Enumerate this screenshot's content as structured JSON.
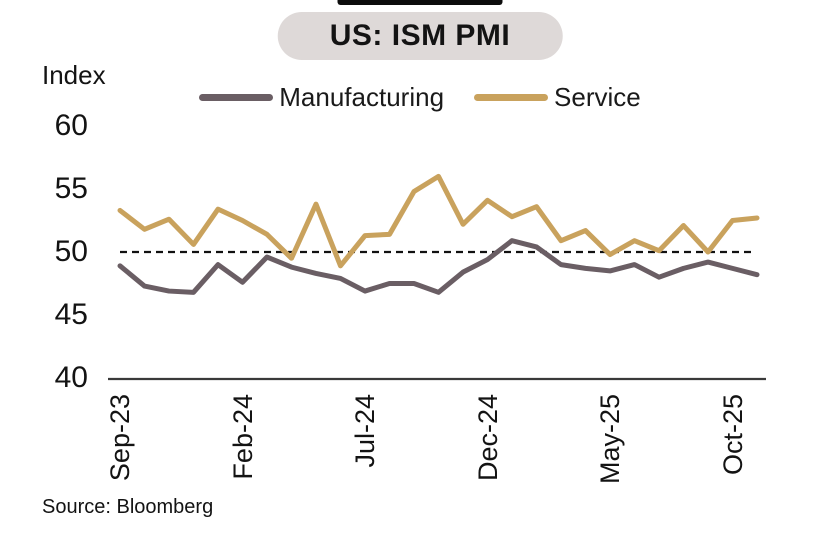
{
  "colors": {
    "accent_bar": "#0c0c0c",
    "title_pill_bg": "#ded9d8",
    "axis": "#3a3a3a",
    "reference_line": "#111111",
    "manufacturing": "#6a5e64",
    "service": "#c9a25d"
  },
  "chart_data": {
    "type": "line",
    "title": "US: ISM PMI",
    "ylabel": "Index",
    "source": "Source: Bloomberg",
    "ylim": [
      40,
      60
    ],
    "y_ticks": [
      60,
      55,
      50,
      45,
      40
    ],
    "reference_line": 50,
    "grid": false,
    "legend_position": "top",
    "x": [
      "Sep-23",
      "Oct-23",
      "Nov-23",
      "Dec-23",
      "Jan-24",
      "Feb-24",
      "Mar-24",
      "Apr-24",
      "May-24",
      "Jun-24",
      "Jul-24",
      "Aug-24",
      "Sep-24",
      "Oct-24",
      "Nov-24",
      "Dec-24",
      "Jan-25",
      "Feb-25",
      "Mar-25",
      "Apr-25",
      "May-25",
      "Jun-25",
      "Jul-25",
      "Aug-25",
      "Sep-25",
      "Oct-25",
      "Nov-25"
    ],
    "x_ticks_shown": [
      "Sep-23",
      "Feb-24",
      "Jul-24",
      "Dec-24",
      "May-25",
      "Oct-25"
    ],
    "series": [
      {
        "name": "Manufacturing",
        "color": "#6a5e64",
        "values": [
          48.9,
          47.3,
          46.9,
          46.8,
          49.0,
          47.6,
          49.6,
          48.8,
          48.3,
          47.9,
          46.9,
          47.5,
          47.5,
          46.8,
          48.4,
          49.4,
          50.9,
          50.4,
          49.0,
          48.7,
          48.5,
          49.0,
          48.0,
          48.7,
          49.2,
          48.7,
          48.2
        ]
      },
      {
        "name": "Service",
        "color": "#c9a25d",
        "values": [
          53.3,
          51.8,
          52.6,
          50.6,
          53.4,
          52.5,
          51.4,
          49.5,
          53.8,
          48.9,
          51.3,
          51.4,
          54.8,
          56.0,
          52.2,
          54.1,
          52.8,
          53.6,
          50.9,
          51.7,
          49.8,
          50.9,
          50.1,
          52.1,
          50.0,
          52.5,
          52.7
        ]
      }
    ]
  }
}
